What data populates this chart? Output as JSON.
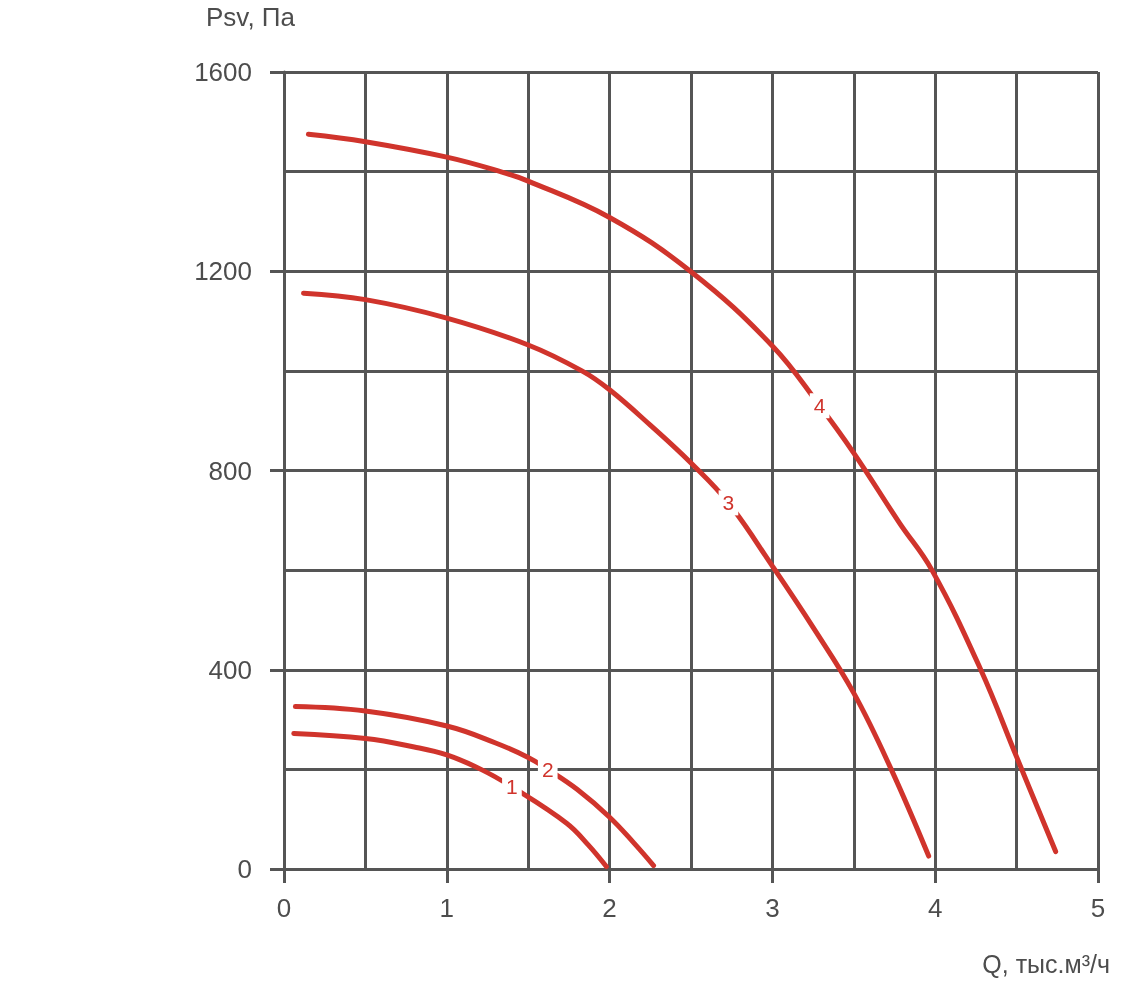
{
  "chart_data": {
    "type": "line",
    "xlabel": "Q, тыс.м³/ч",
    "ylabel": "Psv, Па",
    "xlim": [
      0,
      5
    ],
    "ylim": [
      0,
      1600
    ],
    "xticks": [
      0,
      {
        "value": 0.5,
        "label": null
      },
      1,
      {
        "value": 1.5,
        "label": null
      },
      2,
      {
        "value": 2.5,
        "label": null
      },
      3,
      {
        "value": 3.5,
        "label": null
      },
      4,
      {
        "value": 4.5,
        "label": null
      },
      5
    ],
    "yticks": [
      0,
      {
        "value": 200,
        "label": null
      },
      400,
      {
        "value": 600,
        "label": null
      },
      800,
      {
        "value": 1000,
        "label": null
      },
      1200,
      {
        "value": 1400,
        "label": null
      },
      1600
    ],
    "grid": true,
    "line_style": "solid",
    "series": [
      {
        "name": "1",
        "color": "#d0342c",
        "x": [
          0.06,
          0.5,
          0.8,
          1.0,
          1.21,
          1.4,
          1.736,
          1.87,
          1.98
        ],
        "values": [
          272,
          262,
          245,
          229,
          200,
          165,
          92,
          48,
          5
        ]
      },
      {
        "name": "2",
        "color": "#d0342c",
        "x": [
          0.07,
          0.5,
          1.0,
          1.3,
          1.5,
          1.62,
          1.8,
          2.0,
          2.15,
          2.27
        ],
        "values": [
          326,
          317,
          287,
          253,
          224,
          200,
          160,
          104,
          52,
          7
        ]
      },
      {
        "name": "3",
        "color": "#d0342c",
        "x": [
          0.12,
          0.5,
          1.0,
          1.5,
          1.83,
          2.0,
          2.25,
          2.5,
          2.73,
          3.0,
          3.25,
          3.5,
          3.73,
          3.96
        ],
        "values": [
          1156,
          1143,
          1106,
          1052,
          1000,
          962,
          891,
          815,
          735,
          608,
          485,
          353,
          200,
          26
        ]
      },
      {
        "name": "4",
        "color": "#d0342c",
        "x": [
          0.15,
          0.5,
          1.0,
          1.33,
          1.5,
          2.0,
          2.5,
          3.0,
          3.29,
          3.5,
          3.78,
          3.98,
          4.28,
          4.5,
          4.74
        ],
        "values": [
          1475,
          1460,
          1429,
          1400,
          1381,
          1308,
          1199,
          1050,
          930,
          835,
          695,
          600,
          400,
          225,
          35
        ]
      }
    ]
  }
}
